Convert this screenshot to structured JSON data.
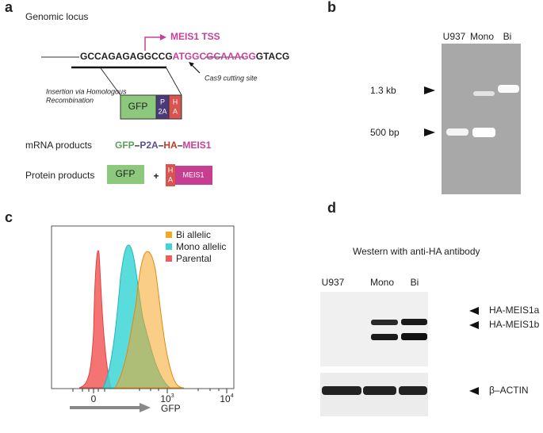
{
  "panel_a": {
    "label": "a",
    "title": "Genomic locus",
    "tss": "MEIS1 TSS",
    "sequence": [
      "GCCAGAGAGGCCG",
      "ATGGCGCAAAGG",
      "GTACG"
    ],
    "cut_site": "Cas9 cutting site",
    "insertion": [
      "Insertion via Homologous",
      "Recombination"
    ],
    "cassette": {
      "gfp": "GFP",
      "p2a": [
        "P",
        "2A"
      ],
      "ha": [
        "H",
        "A"
      ]
    },
    "mrna_title": "mRNA products",
    "mrna": [
      "GFP",
      "–",
      "P2A",
      "–",
      "HA",
      "–",
      "MEIS1"
    ],
    "protein_title": "Protein  products",
    "protein": {
      "gfp": "GFP",
      "plus": "+",
      "ha": [
        "H",
        "A"
      ],
      "meis1": "MEIS1"
    }
  },
  "panel_b": {
    "label": "b",
    "lanes": [
      "U937",
      "Mono",
      "Bi"
    ],
    "markers": [
      "1.3 kb",
      "500 bp"
    ]
  },
  "panel_c": {
    "label": "c",
    "legend": [
      "Bi allelic",
      "Mono allelic",
      "Parental"
    ],
    "xticks": [
      {
        "base": "0"
      },
      {
        "base": "10",
        "exp": "3"
      },
      {
        "base": "10",
        "exp": "4"
      }
    ],
    "xlabel": "GFP"
  },
  "panel_d": {
    "label": "d",
    "title": "Western with anti-HA antibody",
    "lanes": [
      "U937",
      "Mono",
      "Bi"
    ],
    "bands": [
      "HA-MEIS1a",
      "HA-MEIS1b",
      "β–ACTIN"
    ]
  }
}
